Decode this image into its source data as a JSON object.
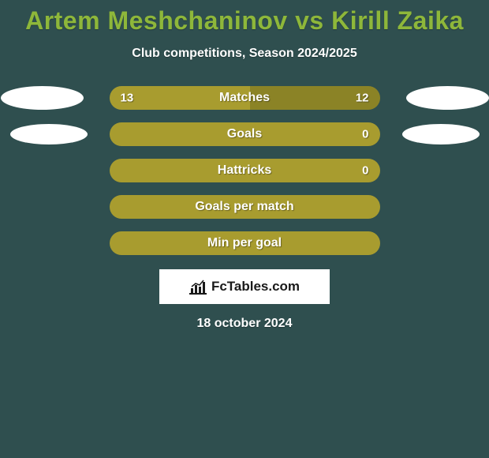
{
  "title": "Artem Meshchaninov vs Kirill Zaika",
  "subtitle": "Club competitions, Season 2024/2025",
  "date": "18 october 2024",
  "logo_text": "FcTables.com",
  "colors": {
    "background": "#2f4f4f",
    "title": "#8eb73a",
    "text": "#ffffff",
    "bar_left": "#a89c2f",
    "bar_right": "#8b8326",
    "bar_full": "#a89c2f",
    "ellipse": "#ffffff",
    "logo_bg": "#ffffff"
  },
  "stats": [
    {
      "label": "Matches",
      "left_value": "13",
      "right_value": "12",
      "left_pct": 52,
      "right_pct": 48,
      "left_color": "#a89c2f",
      "right_color": "#8b8326",
      "show_values": true,
      "show_ellipses": true
    },
    {
      "label": "Goals",
      "left_value": "",
      "right_value": "0",
      "left_pct": 100,
      "right_pct": 0,
      "left_color": "#a89c2f",
      "right_color": "#8b8326",
      "show_values": true,
      "show_ellipses": true,
      "ellipse_inset": true
    },
    {
      "label": "Hattricks",
      "left_value": "",
      "right_value": "0",
      "left_pct": 100,
      "right_pct": 0,
      "left_color": "#a89c2f",
      "right_color": "#8b8326",
      "show_values": true,
      "show_ellipses": false
    },
    {
      "label": "Goals per match",
      "left_value": "",
      "right_value": "",
      "left_pct": 100,
      "right_pct": 0,
      "left_color": "#a89c2f",
      "right_color": "#8b8326",
      "show_values": false,
      "show_ellipses": false
    },
    {
      "label": "Min per goal",
      "left_value": "",
      "right_value": "",
      "left_pct": 100,
      "right_pct": 0,
      "left_color": "#a89c2f",
      "right_color": "#8b8326",
      "show_values": false,
      "show_ellipses": false
    }
  ]
}
